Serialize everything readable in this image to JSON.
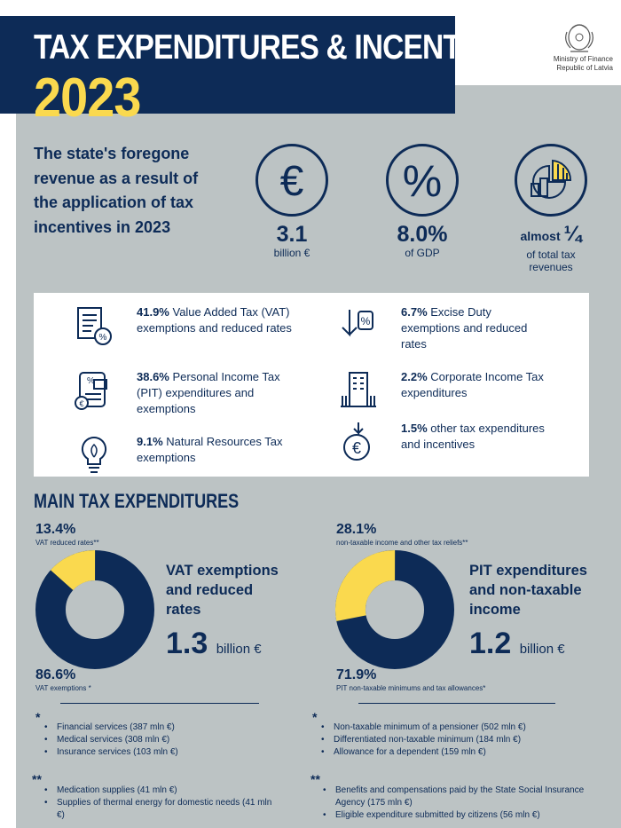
{
  "header": {
    "title": "TAX EXPENDITURES & INCENTIVES",
    "year": "2023",
    "ministry_line1": "Ministry of Finance",
    "ministry_line2": "Republic of Latvia"
  },
  "intro": {
    "text": "The state's foregone revenue as a result of the application of tax incentives in 2023"
  },
  "stats": [
    {
      "icon": "euro-icon",
      "value": "3.1",
      "label": "billion €"
    },
    {
      "icon": "percent-icon",
      "value": "8.0%",
      "label": "of GDP"
    },
    {
      "icon": "chart-icon",
      "value_prefix": "almost",
      "value": "¼",
      "label": "of total tax revenues"
    }
  ],
  "breakdown": [
    {
      "icon": "document-icon",
      "pct": "41.9%",
      "text": " Value Added Tax (VAT) exemptions and reduced rates"
    },
    {
      "icon": "excise-icon",
      "pct": "6.7%",
      "text": " Excise Duty exemptions and reduced rates"
    },
    {
      "icon": "briefcase-document-icon",
      "pct": "38.6%",
      "text": " Personal Income Tax (PIT) expenditures and exemptions"
    },
    {
      "icon": "building-icon",
      "pct": "2.2%",
      "text": " Corporate Income Tax expenditures"
    },
    {
      "icon": "lightbulb-icon",
      "pct": "9.1%",
      "text": " Natural Resources Tax exemptions"
    },
    {
      "icon": "euro-coin-icon",
      "pct": "1.5%",
      "text": " other tax expenditures and incentives"
    }
  ],
  "main": {
    "heading": "MAIN TAX EXPENDITURES",
    "vat": {
      "top_pct": "13.4%",
      "top_label": "VAT reduced rates**",
      "bottom_pct": "86.6%",
      "bottom_label": "VAT exemptions *",
      "title": "VAT exemptions and reduced rates",
      "amount": "1.3",
      "unit": "billion €",
      "share_yellow": 0.134,
      "list_star": "*",
      "list1": [
        "Financial services (387 mln €)",
        "Medical services (308 mln €)",
        "Insurance services (103 mln €)"
      ],
      "list_star2": "**",
      "list2": [
        "Medication supplies (41 mln €)",
        "Supplies of thermal energy for domestic needs (41 mln €)"
      ]
    },
    "pit": {
      "top_pct": "28.1%",
      "top_label": "non-taxable income and other tax reliefs**",
      "bottom_pct": "71.9%",
      "bottom_label": "PIT non-taxable minimums and tax allowances*",
      "title": "PIT expenditures and non-taxable income",
      "amount": "1.2",
      "unit": "billion €",
      "share_yellow": 0.281,
      "list_star": "*",
      "list1": [
        "Non-taxable minimum of a pensioner (502 mln €)",
        "Differentiated non-taxable minimum (184 mln €)",
        "Allowance for a dependent (159 mln €)"
      ],
      "list_star2": "**",
      "list2": [
        "Benefits and compensations paid by the State Social Insurance Agency (175 mln €)",
        "Eligible expenditure submitted by citizens (56 mln €)"
      ]
    }
  },
  "colors": {
    "navy": "#0d2b57",
    "yellow": "#fad94e",
    "grey": "#bcc3c4"
  }
}
